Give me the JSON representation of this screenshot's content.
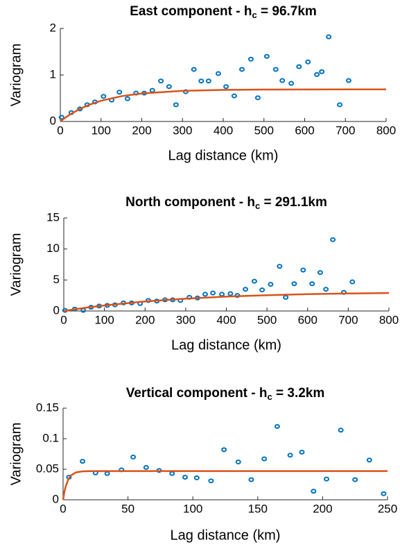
{
  "chart_data": [
    {
      "type": "scatter",
      "title": "East component - h",
      "title_subscript": "c",
      "title_suffix": " = 96.7km",
      "xlabel": "Lag distance (km)",
      "ylabel": "Variogram",
      "xlim": [
        0,
        800
      ],
      "xticks": [
        0,
        100,
        200,
        300,
        400,
        500,
        600,
        700,
        800
      ],
      "ylim": [
        0,
        2
      ],
      "yticks": [
        0,
        1,
        2
      ],
      "series": [
        {
          "type": "scatter",
          "color": "#0072bd",
          "x": [
            3,
            27,
            48,
            66,
            85,
            106,
            126,
            145,
            165,
            186,
            206,
            226,
            247,
            267,
            284,
            308,
            328,
            346,
            364,
            388,
            407,
            427,
            446,
            468,
            485,
            507,
            529,
            545,
            567,
            586,
            608,
            630,
            642,
            659,
            686,
            708
          ],
          "values": [
            0.09,
            0.19,
            0.27,
            0.36,
            0.42,
            0.54,
            0.46,
            0.63,
            0.49,
            0.61,
            0.61,
            0.67,
            0.87,
            0.75,
            0.36,
            0.64,
            1.12,
            0.87,
            0.87,
            1.03,
            0.75,
            0.55,
            1.12,
            1.34,
            0.51,
            1.4,
            1.12,
            0.88,
            0.82,
            1.18,
            1.28,
            1.01,
            1.07,
            1.82,
            0.36,
            0.88
          ]
        },
        {
          "type": "line",
          "color": "#d95319",
          "x": [
            0,
            10,
            25,
            50,
            75,
            100,
            150,
            200,
            300,
            400,
            500,
            600,
            800
          ],
          "values": [
            0,
            0.068,
            0.157,
            0.279,
            0.372,
            0.445,
            0.544,
            0.603,
            0.659,
            0.679,
            0.686,
            0.689,
            0.69
          ]
        }
      ]
    },
    {
      "type": "scatter",
      "title": "North component - h",
      "title_subscript": "c",
      "title_suffix": " = 291.1km",
      "xlabel": "Lag distance (km)",
      "ylabel": "Variogram",
      "xlim": [
        0,
        800
      ],
      "xticks": [
        0,
        100,
        200,
        300,
        400,
        500,
        600,
        700,
        800
      ],
      "ylim": [
        0,
        15
      ],
      "yticks": [
        0,
        5,
        10,
        15
      ],
      "series": [
        {
          "type": "scatter",
          "color": "#0072bd",
          "x": [
            3,
            27,
            48,
            67,
            87,
            107,
            126,
            147,
            167,
            188,
            208,
            229,
            249,
            268,
            287,
            309,
            329,
            348,
            367,
            389,
            410,
            427,
            447,
            469,
            488,
            509,
            531,
            546,
            567,
            589,
            611,
            631,
            645,
            662,
            689,
            710
          ],
          "values": [
            0.1,
            0.3,
            0.1,
            0.6,
            0.8,
            0.9,
            1.0,
            1.3,
            1.3,
            1.2,
            1.7,
            1.6,
            1.8,
            1.8,
            1.7,
            2.2,
            2.1,
            2.7,
            2.9,
            2.7,
            2.8,
            2.5,
            3.5,
            4.8,
            3.4,
            4.3,
            7.2,
            2.2,
            4.4,
            6.6,
            4.4,
            6.2,
            3.5,
            11.5,
            3.0,
            4.7
          ]
        },
        {
          "type": "line",
          "color": "#d95319",
          "x": [
            0,
            50,
            100,
            200,
            300,
            400,
            500,
            600,
            700,
            800
          ],
          "values": [
            0,
            0.49,
            0.9,
            1.54,
            1.99,
            2.32,
            2.54,
            2.71,
            2.82,
            2.9
          ]
        }
      ]
    },
    {
      "type": "scatter",
      "title": "Vertical component - h",
      "title_subscript": "c",
      "title_suffix": " = 3.2km",
      "xlabel": "Lag distance (km)",
      "ylabel": "Variogram",
      "xlim": [
        0,
        250
      ],
      "xticks": [
        0,
        50,
        100,
        150,
        200,
        250
      ],
      "ylim": [
        0,
        0.15
      ],
      "yticks": [
        0,
        0.05,
        0.1,
        0.15
      ],
      "series": [
        {
          "type": "scatter",
          "color": "#0072bd",
          "x": [
            4.5,
            15,
            25,
            34,
            45,
            54,
            64,
            74,
            84,
            94,
            103,
            114,
            124,
            135,
            145,
            155,
            165,
            175,
            184,
            193,
            203,
            214,
            225,
            236,
            247
          ],
          "values": [
            0.037,
            0.063,
            0.044,
            0.043,
            0.049,
            0.07,
            0.053,
            0.048,
            0.043,
            0.037,
            0.036,
            0.031,
            0.082,
            0.062,
            0.033,
            0.067,
            0.12,
            0.073,
            0.078,
            0.014,
            0.034,
            0.114,
            0.033,
            0.065,
            0.01
          ]
        },
        {
          "type": "line",
          "color": "#d95319",
          "x": [
            0,
            1,
            2,
            4,
            6,
            10,
            15,
            20,
            30,
            250
          ],
          "values": [
            0,
            0.0126,
            0.0218,
            0.0335,
            0.0398,
            0.0449,
            0.0466,
            0.0469,
            0.047,
            0.047
          ]
        }
      ]
    }
  ]
}
